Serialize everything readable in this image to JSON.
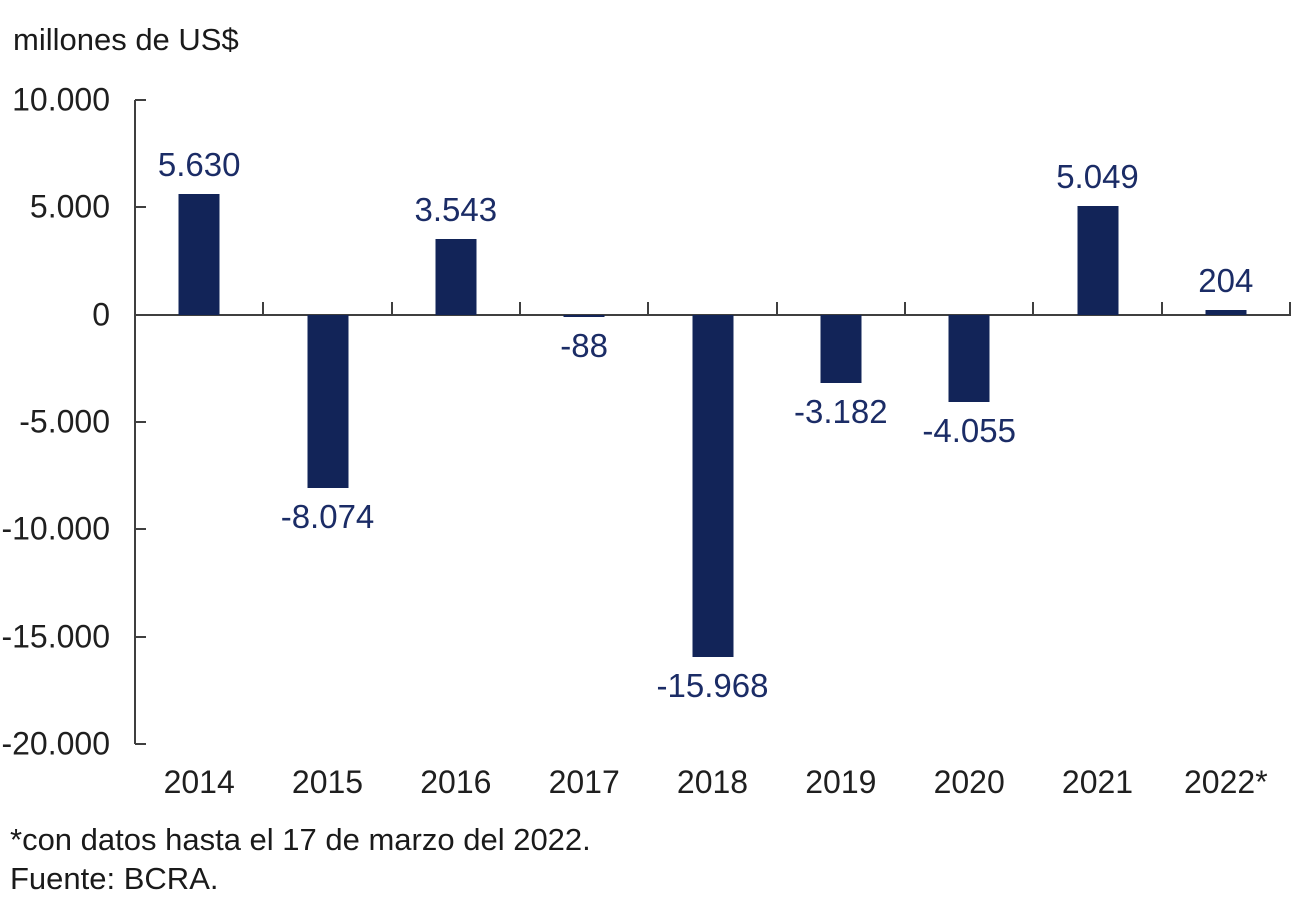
{
  "header": {
    "units_label": "millones de US$"
  },
  "footnotes": {
    "line1": "*con datos hasta el 17 de marzo del 2022.",
    "line2": "Fuente: BCRA."
  },
  "colors": {
    "bar": "#122458",
    "value_label": "#1b2c66",
    "axis": "#3f3f3f",
    "text": "#1f1f1f",
    "background": "#ffffff"
  },
  "chart_data": {
    "type": "bar",
    "title": "",
    "xlabel": "",
    "ylabel": "millones de US$",
    "categories": [
      "2014",
      "2015",
      "2016",
      "2017",
      "2018",
      "2019",
      "2020",
      "2021",
      "2022*"
    ],
    "values": [
      5630,
      -8074,
      3543,
      -88,
      -15968,
      -3182,
      -4055,
      5049,
      204
    ],
    "value_labels": [
      "5.630",
      "-8.074",
      "3.543",
      "-88",
      "-15.968",
      "-3.182",
      "-4.055",
      "5.049",
      "204"
    ],
    "ylim": [
      -20000,
      10000
    ],
    "yticks": [
      {
        "value": 10000,
        "label": "10.000"
      },
      {
        "value": 5000,
        "label": "5.000"
      },
      {
        "value": 0,
        "label": "0"
      },
      {
        "value": -5000,
        "label": "-5.000"
      },
      {
        "value": -10000,
        "label": "-10.000"
      },
      {
        "value": -15000,
        "label": "-15.000"
      },
      {
        "value": -20000,
        "label": "-20.000"
      }
    ],
    "grid": false,
    "legend": null,
    "source_note": "Fuente: BCRA.",
    "asterisk_note": "*con datos hasta el 17 de marzo del 2022."
  }
}
